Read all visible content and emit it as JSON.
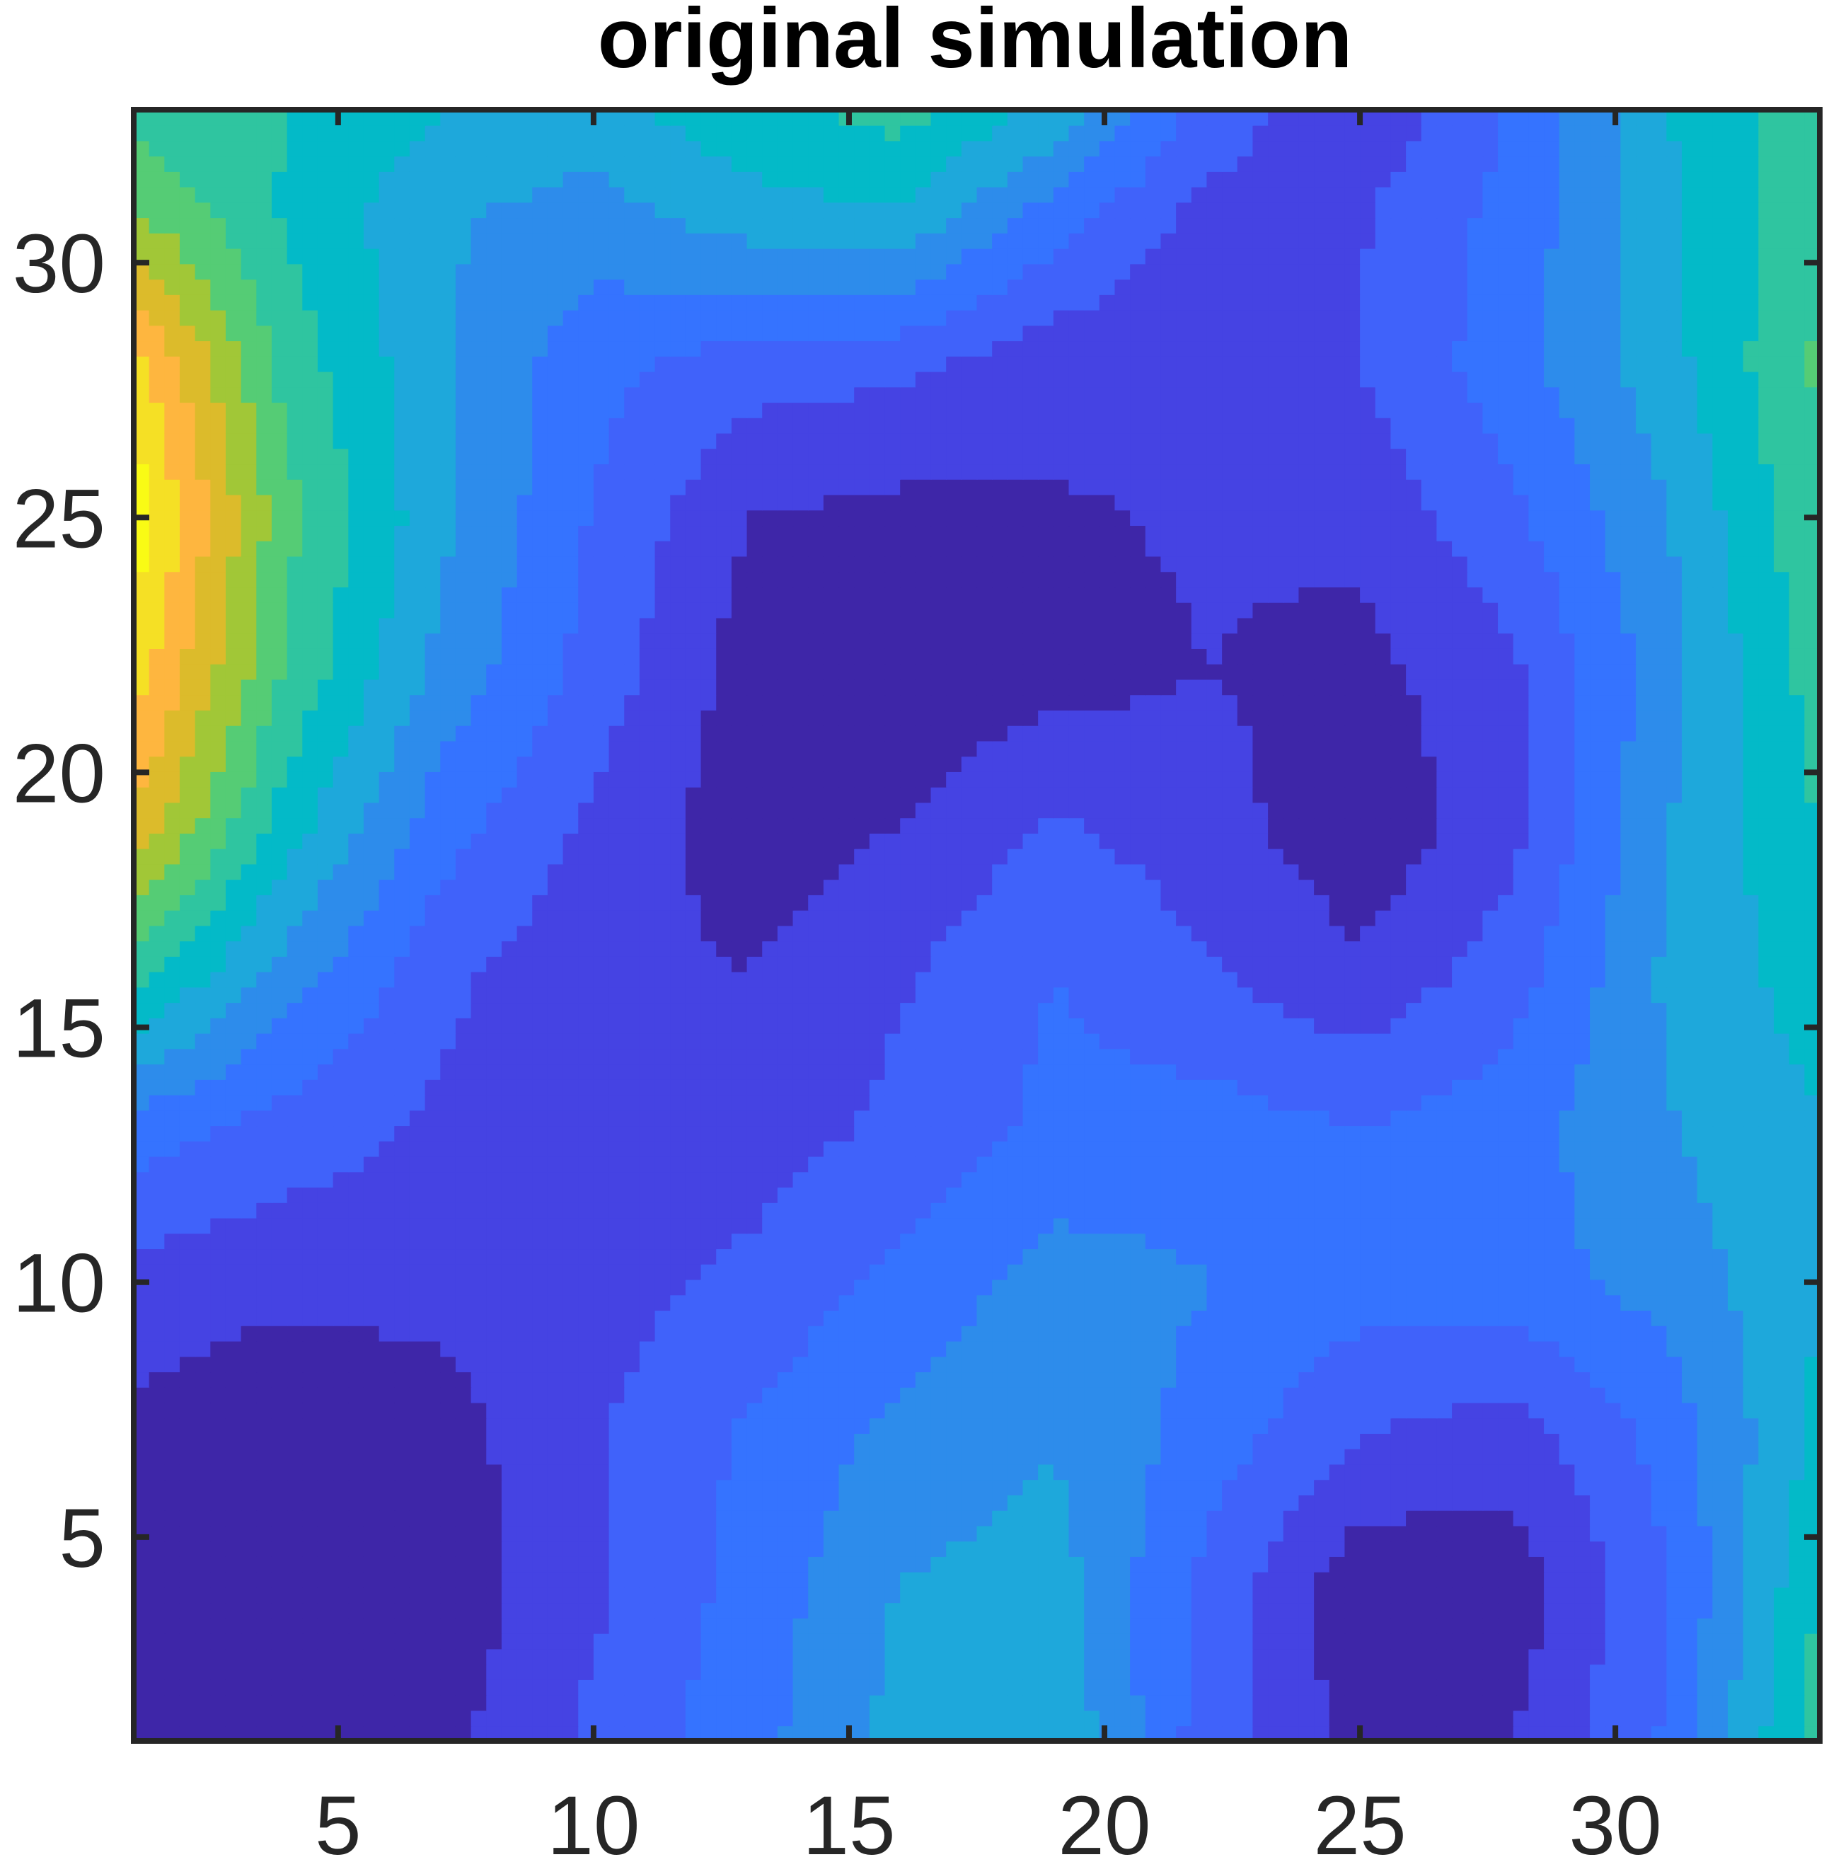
{
  "chart_data": {
    "type": "heatmap",
    "title": "original simulation",
    "xlabel": "",
    "ylabel": "",
    "xlim": [
      1,
      34
    ],
    "ylim": [
      1,
      33
    ],
    "xticks": [
      5,
      10,
      15,
      20,
      25,
      30
    ],
    "yticks": [
      5,
      10,
      15,
      20,
      25,
      30
    ],
    "grid": false,
    "colormap": [
      "#3e26a8",
      "#4543e3",
      "#4062fa",
      "#3573ff",
      "#2d8ceb",
      "#1ea8db",
      "#03bac8",
      "#2fc5a0",
      "#55cc75",
      "#a1c737",
      "#dcbb2b",
      "#feb63f",
      "#f5e025",
      "#f9fb15"
    ],
    "x": [
      1,
      4,
      7,
      10,
      13,
      16,
      19,
      22,
      25,
      28,
      31,
      34
    ],
    "y": [
      1,
      4,
      7,
      10,
      13,
      16,
      19,
      22,
      25,
      28,
      31,
      33
    ],
    "z": [
      [
        0.9,
        0.3,
        0.6,
        2.0,
        3.2,
        4.8,
        5.3,
        2.2,
        0.6,
        0.9,
        2.8,
        6.8
      ],
      [
        0.6,
        0.1,
        0.3,
        1.6,
        3.0,
        4.5,
        4.9,
        2.4,
        0.2,
        0.4,
        2.6,
        6.3
      ],
      [
        0.7,
        0.2,
        0.5,
        1.7,
        2.8,
        3.8,
        4.4,
        3.2,
        1.8,
        1.3,
        3.0,
        5.6
      ],
      [
        1.4,
        1.1,
        1.2,
        1.4,
        2.0,
        2.9,
        4.0,
        3.6,
        3.1,
        3.2,
        3.9,
        5.3
      ],
      [
        3.1,
        2.3,
        1.6,
        1.1,
        1.3,
        2.0,
        2.9,
        3.1,
        2.7,
        3.2,
        4.4,
        5.3
      ],
      [
        6.6,
        4.0,
        2.0,
        1.1,
        0.9,
        1.7,
        2.7,
        1.9,
        1.1,
        2.3,
        4.6,
        5.8
      ],
      [
        9.7,
        5.8,
        3.1,
        1.6,
        0.4,
        0.9,
        1.9,
        1.3,
        0.2,
        1.5,
        4.4,
        6.3
      ],
      [
        11.2,
        7.0,
        4.2,
        2.3,
        0.5,
        0.1,
        0.5,
        0.9,
        0.6,
        1.6,
        4.1,
        6.7
      ],
      [
        12.2,
        7.4,
        4.7,
        2.6,
        0.9,
        0.6,
        0.8,
        1.0,
        1.1,
        2.5,
        4.4,
        7.0
      ],
      [
        11.1,
        6.8,
        4.6,
        3.0,
        2.2,
        2.0,
        1.2,
        0.9,
        1.8,
        3.2,
        5.0,
        7.3
      ],
      [
        8.1,
        6.1,
        4.6,
        4.1,
        5.0,
        5.3,
        3.2,
        1.5,
        1.7,
        3.0,
        5.2,
        7.0
      ],
      [
        6.7,
        6.3,
        5.4,
        5.0,
        6.0,
        6.6,
        5.1,
        2.3,
        1.0,
        2.8,
        5.3,
        6.9
      ]
    ]
  }
}
